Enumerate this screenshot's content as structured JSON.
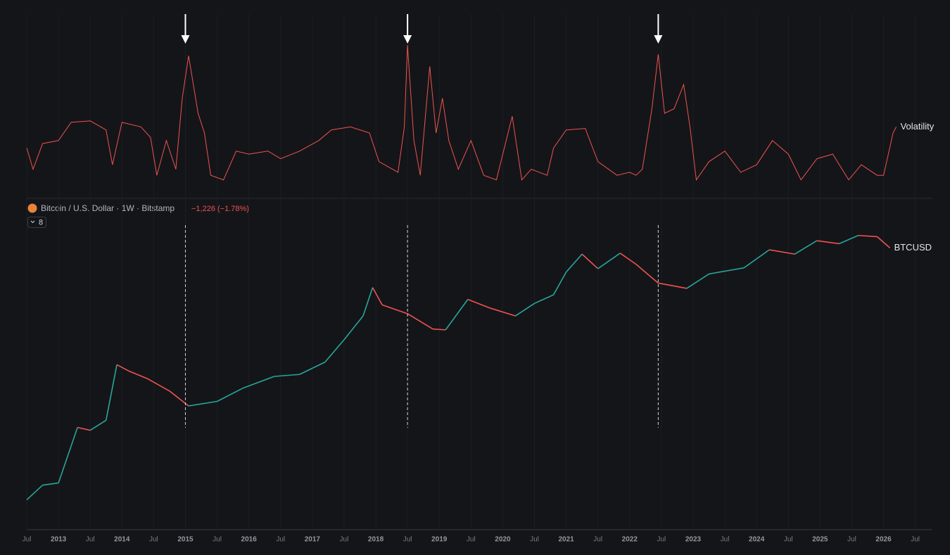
{
  "chart_data": [
    {
      "type": "line",
      "series_name": "Volatility",
      "color": "#ef5350",
      "x": [
        2012.5,
        2012.6,
        2012.75,
        2013.0,
        2013.2,
        2013.5,
        2013.75,
        2013.85,
        2014.0,
        2014.3,
        2014.45,
        2014.55,
        2014.7,
        2014.85,
        2014.95,
        2015.05,
        2015.2,
        2015.3,
        2015.4,
        2015.6,
        2015.8,
        2016.0,
        2016.3,
        2016.5,
        2016.8,
        2017.1,
        2017.3,
        2017.6,
        2017.9,
        2018.05,
        2018.35,
        2018.45,
        2018.5,
        2018.6,
        2018.7,
        2018.85,
        2018.95,
        2019.05,
        2019.15,
        2019.3,
        2019.5,
        2019.7,
        2019.9,
        2020.15,
        2020.3,
        2020.45,
        2020.7,
        2020.8,
        2021.0,
        2021.3,
        2021.5,
        2021.8,
        2022.0,
        2022.1,
        2022.2,
        2022.35,
        2022.45,
        2022.55,
        2022.7,
        2022.85,
        2022.95,
        2023.05,
        2023.25,
        2023.5,
        2023.75,
        2024.0,
        2024.25,
        2024.5,
        2024.7,
        2024.95,
        2025.2,
        2025.45,
        2025.65,
        2025.9,
        2026.0,
        2026.15,
        2026.2
      ],
      "values": [
        30,
        16,
        33,
        35,
        47,
        48,
        42,
        19,
        47,
        44,
        37,
        12,
        35,
        16,
        63,
        91,
        53,
        40,
        12,
        9,
        28,
        26,
        28,
        23,
        28,
        35,
        42,
        44,
        40,
        21,
        14,
        44,
        98,
        35,
        12,
        84,
        40,
        63,
        35,
        16,
        35,
        12,
        9,
        51,
        9,
        16,
        12,
        30,
        42,
        43,
        21,
        12,
        14,
        12,
        16,
        56,
        92,
        53,
        56,
        72,
        44,
        9,
        21,
        28,
        14,
        19,
        35,
        26,
        9,
        23,
        26,
        9,
        19,
        12,
        12,
        40,
        44
      ],
      "ylim": [
        0,
        100
      ],
      "xlim": [
        2012.5,
        2026.77
      ],
      "annotation_x": [
        2015.0,
        2018.5,
        2022.45
      ]
    },
    {
      "type": "line",
      "title": "Bitcoin / U.S. Dollar · 1W · Bitstamp",
      "change_label": "−1,226 (−1.78%)",
      "badge": "8",
      "series_name": "BTCUSD",
      "up_color": "#26a69a",
      "down_color": "#ef5350",
      "log_scale": true,
      "x": [
        2012.5,
        2012.75,
        2013.0,
        2013.3,
        2013.5,
        2013.75,
        2013.92,
        2014.1,
        2014.4,
        2014.75,
        2015.05,
        2015.5,
        2015.9,
        2016.4,
        2016.8,
        2017.2,
        2017.5,
        2017.8,
        2017.95,
        2018.1,
        2018.5,
        2018.9,
        2019.1,
        2019.45,
        2019.8,
        2020.2,
        2020.5,
        2020.8,
        2021.0,
        2021.25,
        2021.5,
        2021.85,
        2022.1,
        2022.45,
        2022.9,
        2023.25,
        2023.8,
        2024.2,
        2024.6,
        2024.95,
        2025.3,
        2025.6,
        2025.9,
        2026.1
      ],
      "values": [
        7,
        12,
        13,
        100,
        90,
        130,
        1000,
        800,
        600,
        380,
        220,
        260,
        420,
        650,
        700,
        1100,
        2500,
        6000,
        17000,
        9000,
        6500,
        3700,
        3600,
        11000,
        8000,
        6000,
        9500,
        13000,
        30000,
        58000,
        34000,
        60000,
        40000,
        20000,
        16500,
        28000,
        35000,
        68000,
        58000,
        95000,
        85000,
        115000,
        110000,
        73000
      ],
      "ylim": [
        2.4,
        248000
      ],
      "xlim": [
        2012.5,
        2026.77
      ],
      "grid": true,
      "xticks": [
        {
          "value": 2012.5,
          "label": "Jul"
        },
        2013,
        {
          "value": 2013.5,
          "label": "Jul"
        },
        2014,
        {
          "value": 2014.5,
          "label": "Jul"
        },
        2015,
        {
          "value": 2015.5,
          "label": "Jul"
        },
        2016,
        {
          "value": 2016.5,
          "label": "Jul"
        },
        2017,
        {
          "value": 2017.5,
          "label": "Jul"
        },
        2018,
        {
          "value": 2018.5,
          "label": "Jul"
        },
        2019,
        {
          "value": 2019.5,
          "label": "Jul"
        },
        2020,
        {
          "value": 2020.5,
          "label": "Jul"
        },
        2021,
        {
          "value": 2021.5,
          "label": "Jul"
        },
        2022,
        {
          "value": 2022.5,
          "label": "Jul"
        },
        2023,
        {
          "value": 2023.5,
          "label": "Jul"
        },
        2024,
        {
          "value": 2024.5,
          "label": "Jul"
        },
        2025,
        {
          "value": 2025.5,
          "label": "Jul"
        },
        2026,
        {
          "value": 2026.5,
          "label": "Jul"
        }
      ]
    }
  ]
}
